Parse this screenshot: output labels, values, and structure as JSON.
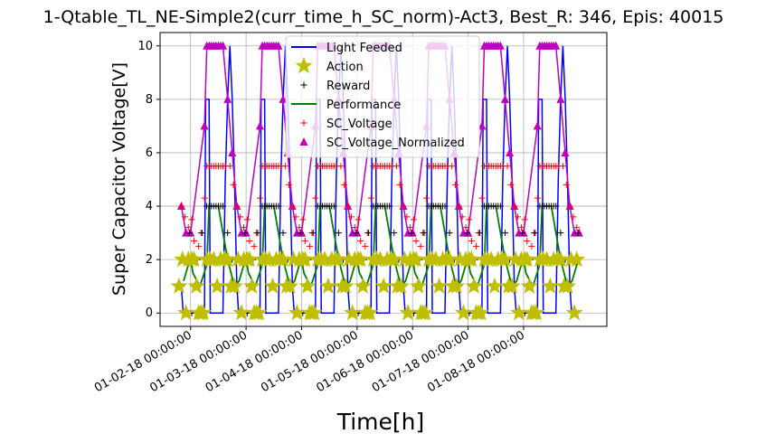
{
  "chart_data": {
    "type": "line",
    "title": "1-Qtable_TL_NE-Simple2(curr_time_h_SC_norm)-Act3, Best_R: 346, Epis: 40015",
    "xlabel": "Time[h]",
    "ylabel": "Super Capacitor Voltage[V]",
    "x_tick_labels": [
      "01-02-18 00:00:00",
      "01-03-18 00:00:00",
      "01-04-18 00:00:00",
      "01-05-18 00:00:00",
      "01-06-18 00:00:00",
      "01-07-18 00:00:00",
      "01-08-18 00:00:00"
    ],
    "y_ticks": [
      0,
      2,
      4,
      6,
      8,
      10
    ],
    "xlim_days": [
      0.45,
      8.5
    ],
    "ylim": [
      -0.5,
      10.5
    ],
    "grid": true,
    "legend": "upper center",
    "day_pattern": {
      "light_feeded": [
        [
          0,
          0
        ],
        [
          6,
          0
        ],
        [
          6.5,
          8
        ],
        [
          8,
          8
        ],
        [
          8.5,
          0
        ],
        [
          14,
          0
        ],
        [
          15,
          5
        ],
        [
          16,
          8
        ],
        [
          17,
          10
        ],
        [
          18,
          8
        ],
        [
          19,
          5
        ],
        [
          20,
          1
        ],
        [
          20.8,
          0
        ],
        [
          24,
          0
        ]
      ],
      "performance": [
        [
          0,
          2
        ],
        [
          1,
          1.5
        ],
        [
          4,
          1
        ],
        [
          7,
          1.8
        ],
        [
          8,
          4
        ],
        [
          12,
          4
        ],
        [
          14,
          3
        ],
        [
          16,
          2
        ],
        [
          19,
          1
        ],
        [
          21,
          1.2
        ],
        [
          23,
          1.8
        ],
        [
          24,
          2
        ]
      ],
      "action": [
        [
          0.5,
          2
        ],
        [
          1.5,
          2
        ],
        [
          2.5,
          1
        ],
        [
          3.5,
          0
        ],
        [
          4.5,
          0
        ],
        [
          5.5,
          0
        ],
        [
          7,
          2
        ],
        [
          8.5,
          2
        ],
        [
          10,
          2
        ],
        [
          11.5,
          1
        ],
        [
          13,
          2
        ],
        [
          14.5,
          2
        ],
        [
          16,
          2
        ],
        [
          17.5,
          1
        ],
        [
          19,
          1
        ],
        [
          20.5,
          2
        ],
        [
          22,
          0
        ],
        [
          23,
          2
        ]
      ],
      "reward": [
        [
          0.5,
          0
        ],
        [
          1.5,
          1
        ],
        [
          3,
          2
        ],
        [
          5,
          3
        ],
        [
          7,
          4
        ],
        [
          8,
          4
        ],
        [
          9,
          4
        ],
        [
          10,
          4
        ],
        [
          11,
          4
        ],
        [
          12,
          4
        ],
        [
          13,
          4
        ],
        [
          14,
          4
        ],
        [
          16,
          3
        ],
        [
          18,
          2
        ],
        [
          20,
          1
        ],
        [
          22,
          2
        ],
        [
          23.5,
          3
        ]
      ],
      "sc_voltage": [
        [
          0.5,
          3.5
        ],
        [
          1.5,
          2.7
        ],
        [
          2.5,
          2.0
        ],
        [
          3.5,
          2.5
        ],
        [
          4.5,
          3.0
        ],
        [
          6,
          4.3
        ],
        [
          7,
          5.5
        ],
        [
          8,
          5.5
        ],
        [
          9,
          5.5
        ],
        [
          10,
          5.5
        ],
        [
          11,
          5.5
        ],
        [
          12,
          5.5
        ],
        [
          13,
          5.5
        ],
        [
          14,
          5.5
        ],
        [
          15,
          5.5
        ],
        [
          17,
          5.5
        ],
        [
          18.5,
          4.8
        ],
        [
          20,
          4.0
        ],
        [
          21.5,
          3.6
        ],
        [
          23,
          3.2
        ]
      ],
      "sc_voltage_normalized": [
        [
          0,
          3
        ],
        [
          6,
          7
        ],
        [
          7,
          10
        ],
        [
          8,
          10
        ],
        [
          9,
          10
        ],
        [
          10,
          10
        ],
        [
          11,
          10
        ],
        [
          12,
          10
        ],
        [
          13,
          10
        ],
        [
          14,
          10
        ],
        [
          16,
          8
        ],
        [
          18,
          6
        ],
        [
          20,
          4
        ],
        [
          22,
          3
        ],
        [
          24,
          3
        ]
      ]
    },
    "series": [
      {
        "name": "Light Feeded",
        "color": "#0000ff",
        "style": "line"
      },
      {
        "name": "Action",
        "color": "#bfbf00",
        "style": "star"
      },
      {
        "name": "Reward",
        "color": "#000000",
        "style": "plus"
      },
      {
        "name": "Performance",
        "color": "#008000",
        "style": "line"
      },
      {
        "name": "SC_Voltage",
        "color": "#ff0000",
        "style": "plus"
      },
      {
        "name": "SC_Voltage_Normalized",
        "color": "#bf00bf",
        "style": "triangle"
      }
    ]
  }
}
